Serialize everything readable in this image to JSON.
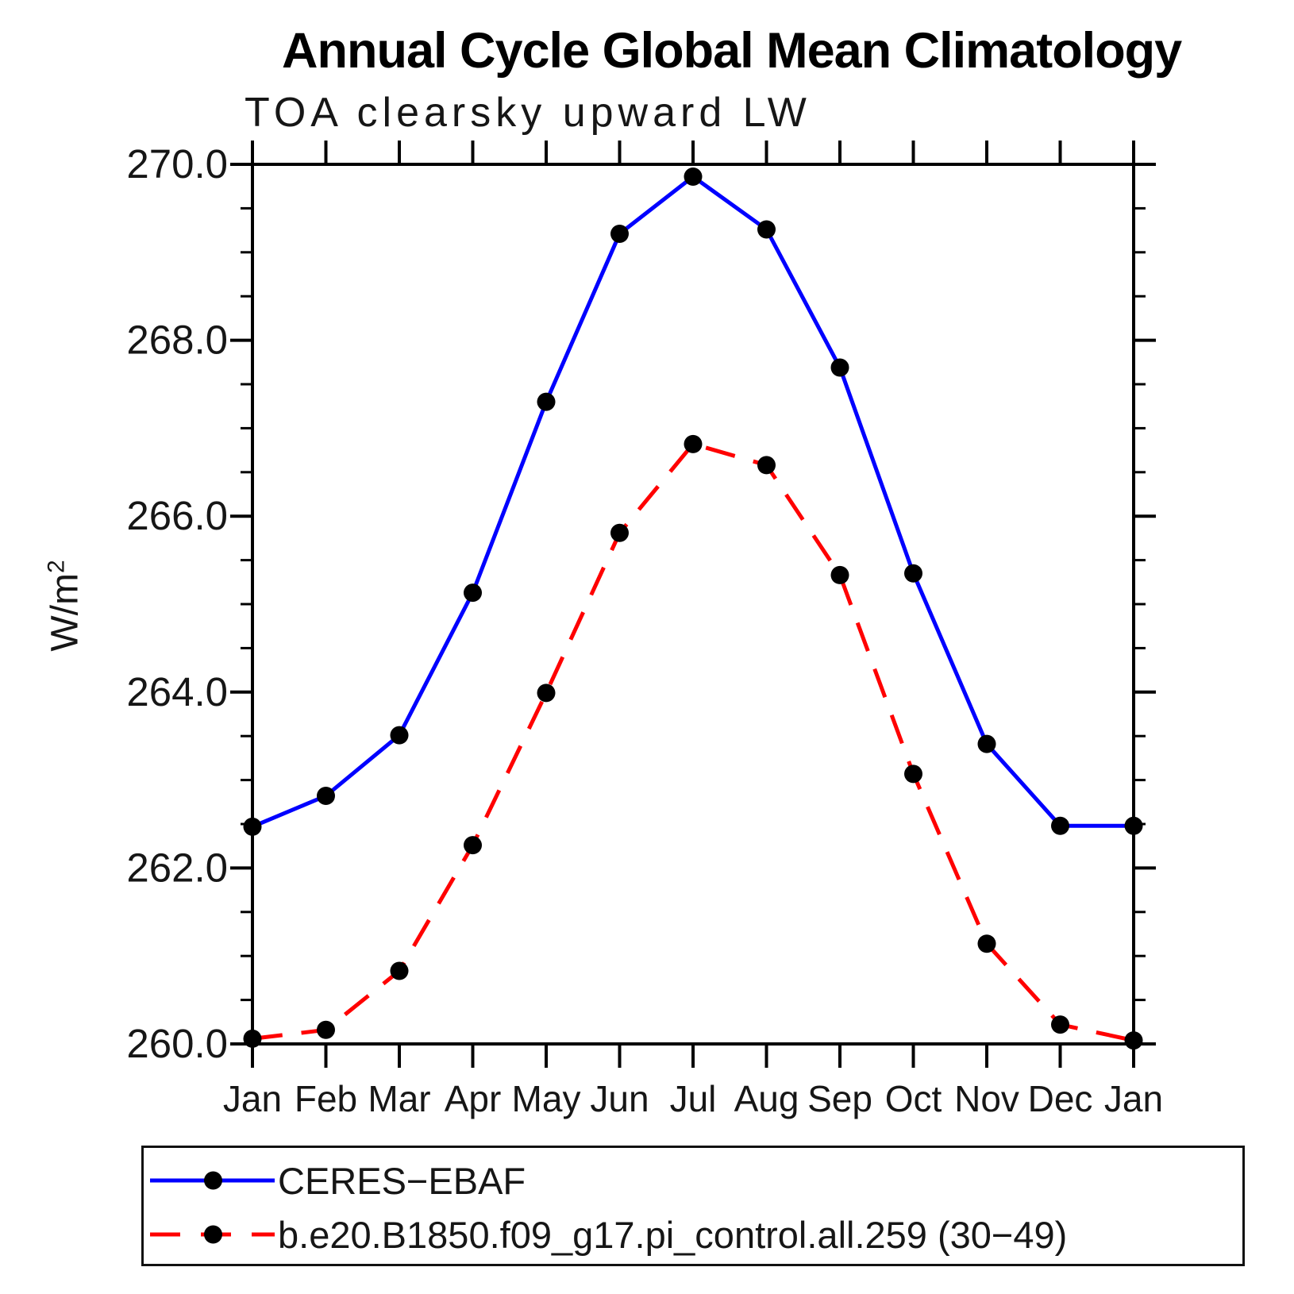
{
  "title": "Annual Cycle Global Mean Climatology",
  "subtitle": "TOA clearsky upward LW",
  "ylabel": "W/m²",
  "chart_data": {
    "type": "line",
    "x_categories": [
      "Jan",
      "Feb",
      "Mar",
      "Apr",
      "May",
      "Jun",
      "Jul",
      "Aug",
      "Sep",
      "Oct",
      "Nov",
      "Dec",
      "Jan"
    ],
    "xlabel": "",
    "ylabel": "W/m²",
    "ylim": [
      260.0,
      270.0
    ],
    "ytick_major": [
      260.0,
      262.0,
      264.0,
      266.0,
      268.0,
      270.0
    ],
    "ytick_minor_step": 0.5,
    "ytick_label_format": "one_decimal",
    "grid": false,
    "legend_position": "bottom-left",
    "series": [
      {
        "name": "CERES−EBAF",
        "color": "#0000ff",
        "line_style": "solid",
        "marker": "circle",
        "marker_color": "#000000",
        "values": [
          262.47,
          262.82,
          263.51,
          265.13,
          267.3,
          269.21,
          269.86,
          269.26,
          267.69,
          265.35,
          263.41,
          262.48,
          262.48
        ]
      },
      {
        "name": "b.e20.B1850.f09_g17.pi_control.all.259 (30−49)",
        "color": "#ff0000",
        "line_style": "dashed",
        "marker": "circle",
        "marker_color": "#000000",
        "values": [
          260.06,
          260.16,
          260.83,
          262.26,
          263.99,
          265.81,
          266.82,
          266.58,
          265.33,
          263.07,
          261.14,
          260.22,
          260.04
        ]
      }
    ]
  }
}
